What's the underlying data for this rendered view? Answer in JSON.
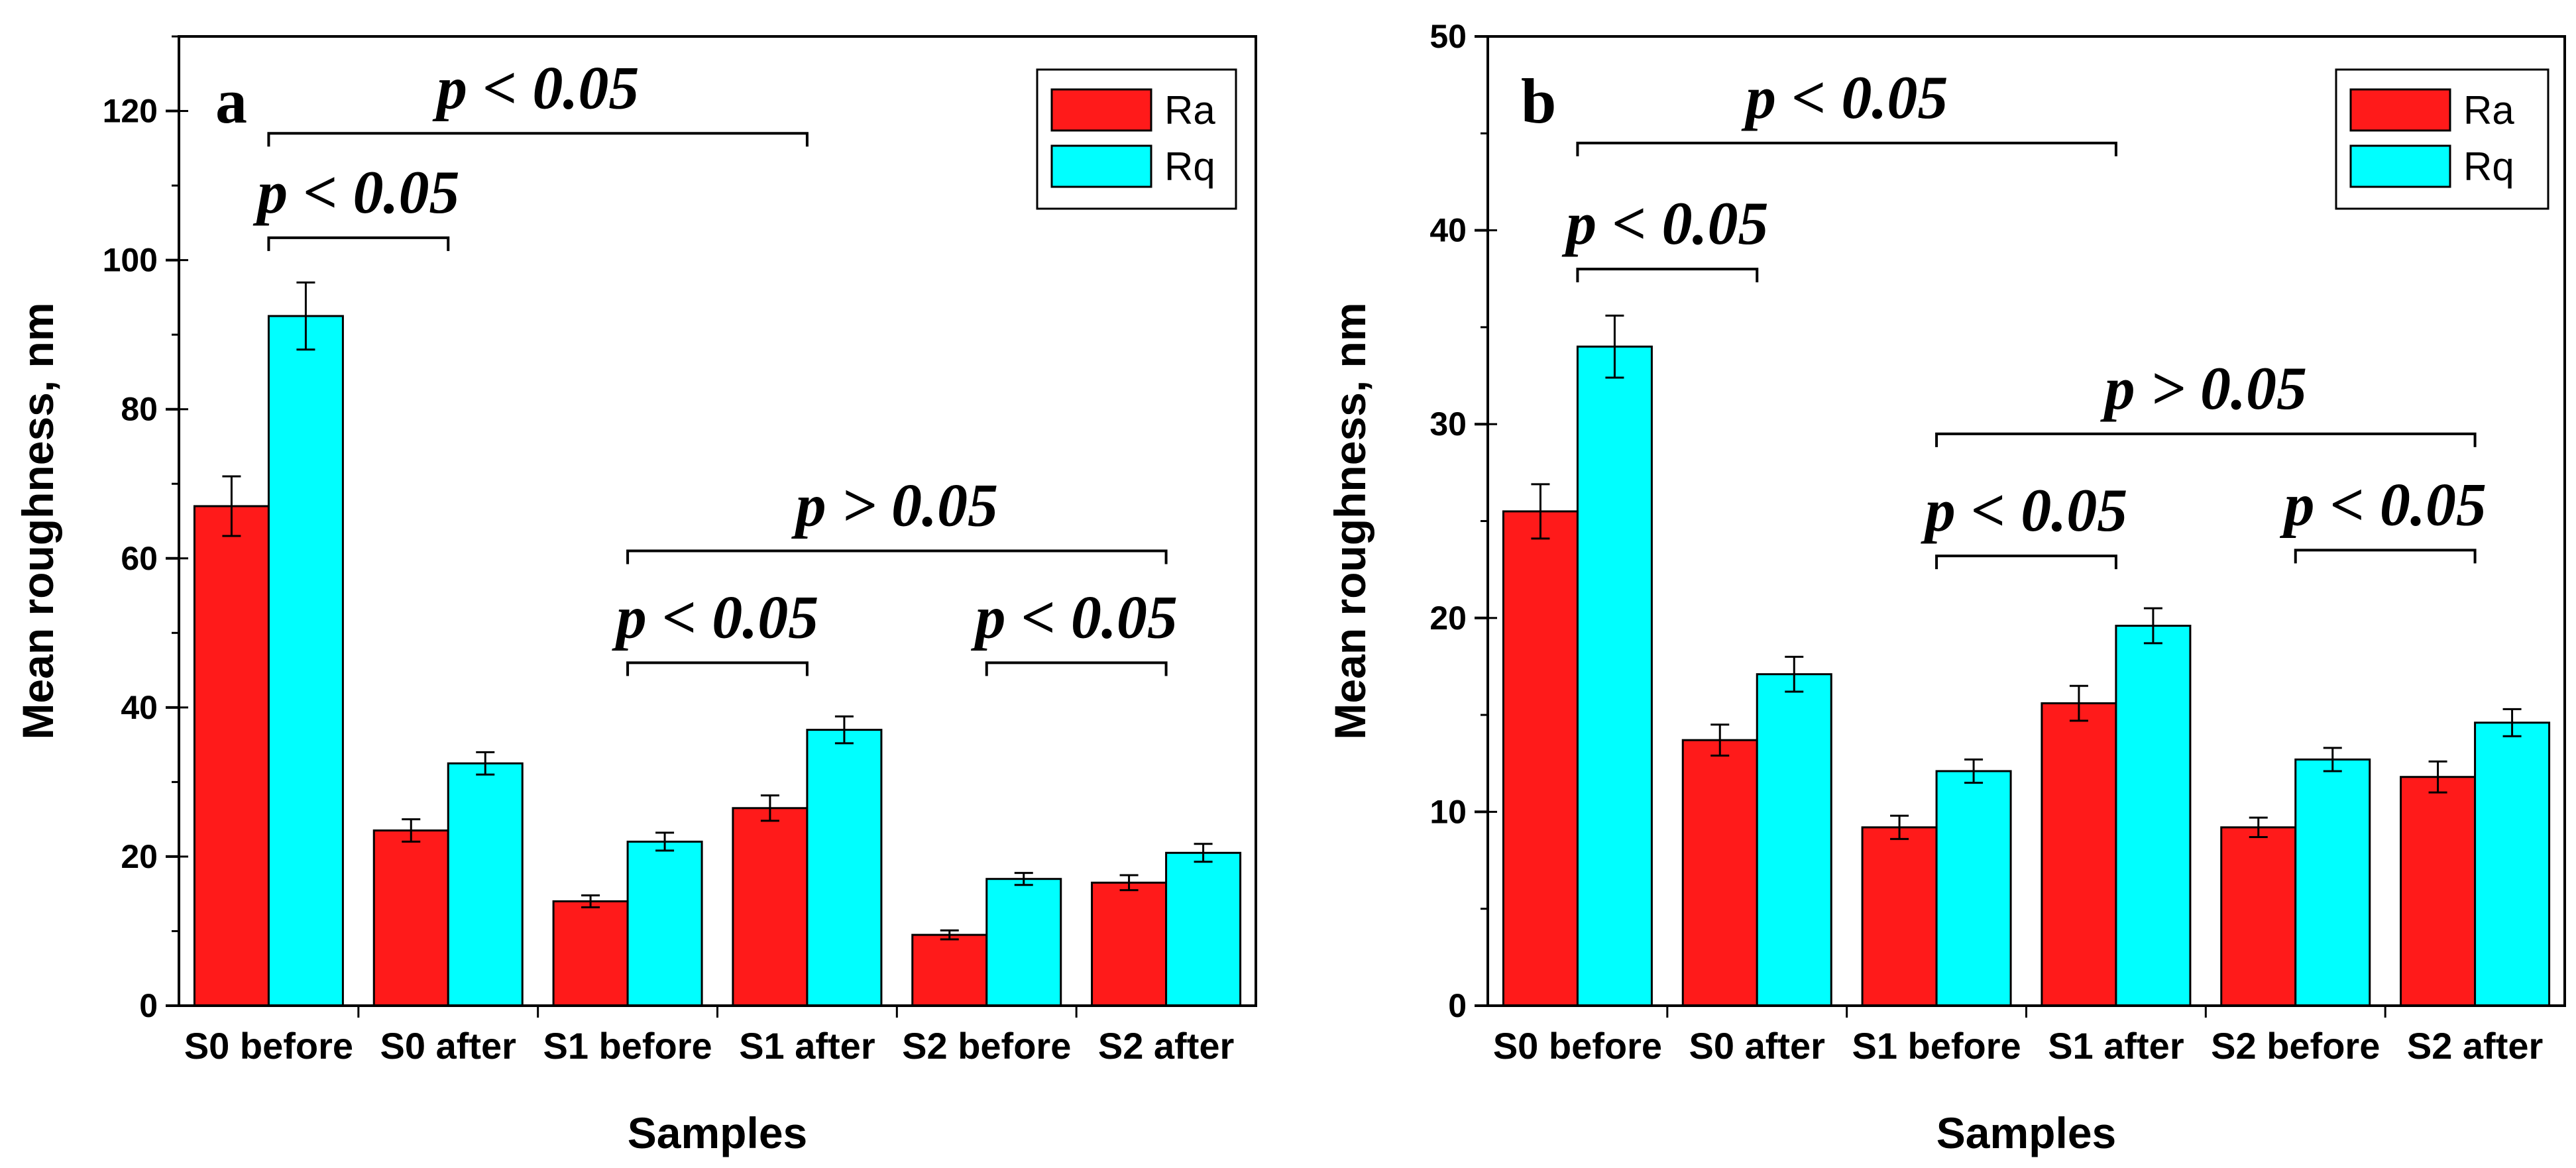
{
  "colors": {
    "Ra": "#ff1a1a",
    "Rq": "#00ffff",
    "axis": "#000000"
  },
  "chart_data": [
    {
      "type": "bar",
      "panel_label": "a",
      "xlabel": "Samples",
      "ylabel": "Mean roughness, nm",
      "ylim": [
        0,
        130
      ],
      "yticks": [
        0,
        20,
        40,
        60,
        80,
        100,
        120
      ],
      "categories": [
        "S0 before",
        "S0 after",
        "S1 before",
        "S1 after",
        "S2 before",
        "S2 after"
      ],
      "series": [
        {
          "name": "Ra",
          "values": [
            67,
            23.5,
            14,
            26.5,
            9.5,
            16.5
          ],
          "errors": [
            4,
            1.5,
            0.8,
            1.7,
            0.6,
            1
          ]
        },
        {
          "name": "Rq",
          "values": [
            92.5,
            32.5,
            22,
            37,
            17,
            20.5
          ],
          "errors": [
            4.5,
            1.5,
            1.2,
            1.8,
            0.8,
            1.2
          ]
        }
      ],
      "legend": [
        "Ra",
        "Rq"
      ],
      "legend_position": "top-right",
      "annotations": [
        {
          "text": "p < 0.05",
          "from": "S0 before",
          "to": "S0 after",
          "level": 103
        },
        {
          "text": "p < 0.05",
          "from": "S0 before",
          "to": "S1 after",
          "level": 117
        },
        {
          "text": "p < 0.05",
          "from": "S1 before",
          "to": "S1 after",
          "level": 46
        },
        {
          "text": "p > 0.05",
          "from": "S1 before",
          "to": "S2 after",
          "level": 61
        },
        {
          "text": "p < 0.05",
          "from": "S2 before",
          "to": "S2 after",
          "level": 46
        }
      ]
    },
    {
      "type": "bar",
      "panel_label": "b",
      "xlabel": "Samples",
      "ylabel": "Mean roughness, nm",
      "ylim": [
        0,
        50
      ],
      "yticks": [
        0,
        10,
        20,
        30,
        40,
        50
      ],
      "categories": [
        "S0 before",
        "S0 after",
        "S1 before",
        "S1 after",
        "S2 before",
        "S2 after"
      ],
      "series": [
        {
          "name": "Ra",
          "values": [
            25.5,
            13.7,
            9.2,
            15.6,
            9.2,
            11.8
          ],
          "errors": [
            1.4,
            0.8,
            0.6,
            0.9,
            0.5,
            0.8
          ]
        },
        {
          "name": "Rq",
          "values": [
            34,
            17.1,
            12.1,
            19.6,
            12.7,
            14.6
          ],
          "errors": [
            1.6,
            0.9,
            0.6,
            0.9,
            0.6,
            0.7
          ]
        }
      ],
      "legend": [
        "Ra",
        "Rq"
      ],
      "legend_position": "top-right",
      "annotations": [
        {
          "text": "p < 0.05",
          "from": "S0 before",
          "to": "S0 after",
          "level": 38
        },
        {
          "text": "p < 0.05",
          "from": "S0 before",
          "to": "S1 after",
          "level": 44.5
        },
        {
          "text": "p < 0.05",
          "from": "S1 before",
          "to": "S1 after",
          "level": 23.2
        },
        {
          "text": "p > 0.05",
          "from": "S1 before",
          "to": "S2 after",
          "level": 29.5
        },
        {
          "text": "p < 0.05",
          "from": "S2 before",
          "to": "S2 after",
          "level": 23.5
        }
      ]
    }
  ]
}
